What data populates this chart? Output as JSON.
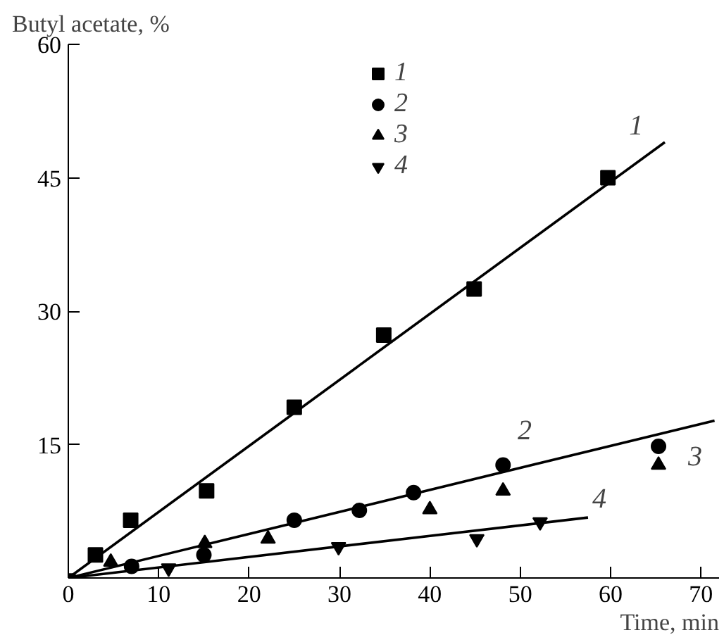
{
  "chart_data": {
    "type": "scatter",
    "xlabel": "Time, min",
    "ylabel": "Butyl acetate, %",
    "xlim": [
      0,
      72
    ],
    "ylim": [
      0,
      60
    ],
    "xticks": [
      0,
      10,
      20,
      30,
      40,
      50,
      60,
      70
    ],
    "yticks": [
      {
        "value": 0,
        "label": null
      },
      15,
      30,
      45,
      60
    ],
    "legend": "top",
    "grid": false,
    "series": [
      {
        "name": "1",
        "color": "#000000",
        "marker": "square",
        "x": [
          3,
          6.9,
          15.3,
          25,
          34.9,
          44.9,
          59.7
        ],
        "values": [
          2.6,
          6.5,
          9.8,
          19.2,
          27.3,
          32.5,
          45
        ]
      },
      {
        "name": "2",
        "color": "#000000",
        "marker": "circle",
        "x": [
          7,
          15,
          25,
          32.2,
          38.2,
          48.1,
          65.3
        ],
        "values": [
          1.3,
          2.6,
          6.5,
          7.6,
          9.6,
          12.7,
          14.8
        ]
      },
      {
        "name": "3",
        "color": "#000000",
        "marker": "triangle",
        "x": [
          4.7,
          15.1,
          22.1,
          40,
          48.1,
          65.3
        ],
        "values": [
          1.8,
          3.9,
          4.4,
          7.7,
          9.8,
          12.7
        ]
      },
      {
        "name": "4",
        "color": "#000000",
        "x": [
          0,
          11.1,
          29.9,
          45.2,
          52.2
        ],
        "values": [
          0,
          1.1,
          3.5,
          4.4,
          6.3
        ]
      },
      {
        "type": "line",
        "color": "#000000",
        "x": [
          0,
          66
        ],
        "values": [
          0,
          49
        ]
      },
      {
        "type": "line",
        "color": "#000000",
        "x": [
          0,
          71.5
        ],
        "values": [
          0,
          17.7
        ]
      },
      {
        "type": "line",
        "color": "#000000",
        "x": [
          0,
          57.5
        ],
        "values": [
          0,
          6.8
        ]
      }
    ],
    "annotations": [
      "1",
      "2",
      "3",
      "4"
    ]
  }
}
